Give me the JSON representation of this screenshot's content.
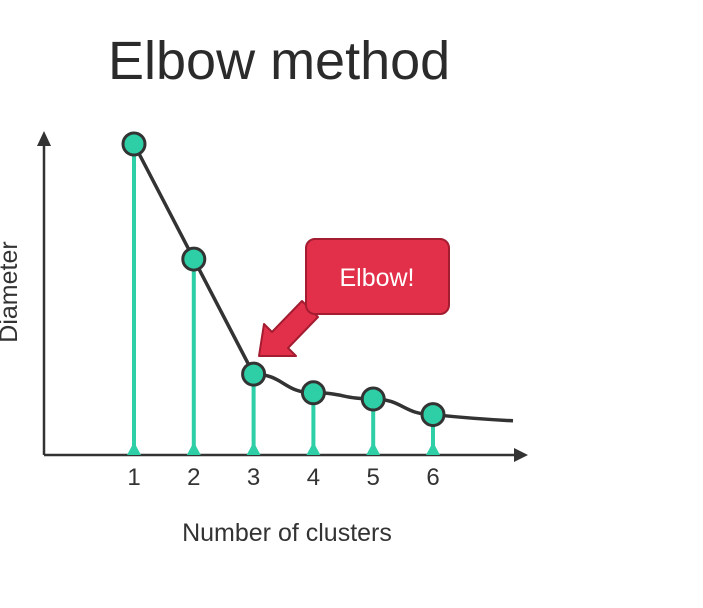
{
  "chart_data": {
    "type": "line",
    "title": "Elbow method",
    "xlabel": "Number of clusters",
    "ylabel": "Diameter",
    "categories": [
      "1",
      "2",
      "3",
      "4",
      "5",
      "6"
    ],
    "values": [
      100,
      63,
      26,
      20,
      18,
      13
    ],
    "trend_tail": 11,
    "ylim": [
      0,
      100
    ],
    "grid": false,
    "annotation": {
      "label": "Elbow!",
      "points_to": "3"
    },
    "colors": {
      "marker_fill": "#2ecfa6",
      "stem": "#2ecfa6",
      "line": "#333333",
      "axis": "#333333",
      "callout_fill": "#e3304a",
      "callout_stroke": "#a31c30"
    }
  }
}
